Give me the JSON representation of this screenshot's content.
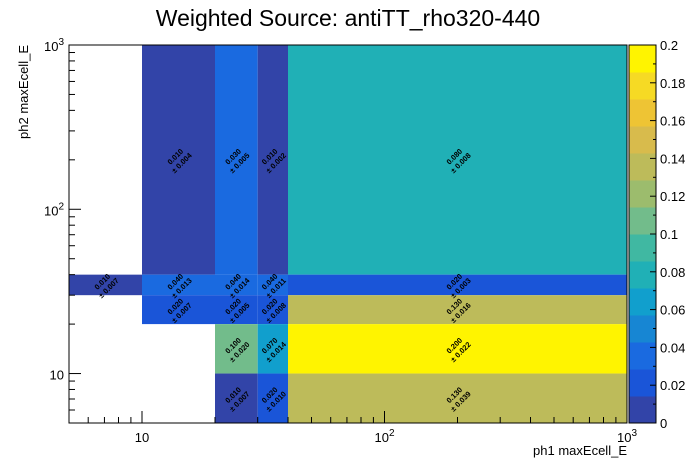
{
  "chart_data": {
    "type": "heatmap",
    "title": "Weighted Source: antiTT_rho320-440",
    "xlabel": "ph1 maxEcell_E",
    "ylabel": "ph2 maxEcell_E",
    "x_scale": "log",
    "y_scale": "log",
    "xlim": [
      5,
      1000
    ],
    "ylim": [
      5,
      1000
    ],
    "x_tick_labels": [
      {
        "value": 10,
        "base": "10",
        "exp": ""
      },
      {
        "value": 100,
        "base": "10",
        "exp": "2"
      },
      {
        "value": 1000,
        "base": "10",
        "exp": "3"
      }
    ],
    "y_tick_labels": [
      {
        "value": 10,
        "base": "10",
        "exp": ""
      },
      {
        "value": 100,
        "base": "10",
        "exp": "2"
      },
      {
        "value": 1000,
        "base": "10",
        "exp": "3"
      }
    ],
    "colorbar": {
      "min": 0,
      "max": 0.2,
      "tick_labels": [
        "0",
        "0.02",
        "0.04",
        "0.06",
        "0.08",
        "0.1",
        "0.12",
        "0.14",
        "0.16",
        "0.18",
        "0.2"
      ],
      "colors": [
        "#3244a8",
        "#1a55d8",
        "#1a6ae0",
        "#1786d3",
        "#119fcd",
        "#20b0b6",
        "#40b8a2",
        "#72bc8b",
        "#9cbc6d",
        "#bdbb5a",
        "#d8bb4c",
        "#eec434",
        "#f6da24",
        "#fff400"
      ]
    },
    "cells": [
      {
        "x0": 5,
        "x1": 10,
        "y0": 30,
        "y1": 40,
        "value": 0.01,
        "value_label": "0.010",
        "error_label": "± 0.007"
      },
      {
        "x0": 10,
        "x1": 20,
        "y0": 40,
        "y1": 1000,
        "value": 0.01,
        "value_label": "0.010",
        "error_label": "± 0.004"
      },
      {
        "x0": 10,
        "x1": 20,
        "y0": 30,
        "y1": 40,
        "value": 0.04,
        "value_label": "0.040",
        "error_label": "± 0.013"
      },
      {
        "x0": 10,
        "x1": 20,
        "y0": 20,
        "y1": 30,
        "value": 0.02,
        "value_label": "0.020",
        "error_label": "± 0.007"
      },
      {
        "x0": 20,
        "x1": 30,
        "y0": 40,
        "y1": 1000,
        "value": 0.03,
        "value_label": "0.030",
        "error_label": "± 0.005"
      },
      {
        "x0": 20,
        "x1": 30,
        "y0": 30,
        "y1": 40,
        "value": 0.04,
        "value_label": "0.040",
        "error_label": "± 0.014"
      },
      {
        "x0": 20,
        "x1": 30,
        "y0": 20,
        "y1": 30,
        "value": 0.02,
        "value_label": "0.020",
        "error_label": "± 0.005"
      },
      {
        "x0": 20,
        "x1": 30,
        "y0": 10,
        "y1": 20,
        "value": 0.1,
        "value_label": "0.100",
        "error_label": "± 0.020"
      },
      {
        "x0": 20,
        "x1": 30,
        "y0": 5,
        "y1": 10,
        "value": 0.01,
        "value_label": "0.010",
        "error_label": "± 0.007"
      },
      {
        "x0": 30,
        "x1": 40,
        "y0": 40,
        "y1": 1000,
        "value": 0.01,
        "value_label": "0.010",
        "error_label": "± 0.002"
      },
      {
        "x0": 30,
        "x1": 40,
        "y0": 30,
        "y1": 40,
        "value": 0.04,
        "value_label": "0.040",
        "error_label": "± 0.011"
      },
      {
        "x0": 30,
        "x1": 40,
        "y0": 20,
        "y1": 30,
        "value": 0.02,
        "value_label": "0.020",
        "error_label": "± 0.008"
      },
      {
        "x0": 30,
        "x1": 40,
        "y0": 10,
        "y1": 20,
        "value": 0.07,
        "value_label": "0.070",
        "error_label": "± 0.014"
      },
      {
        "x0": 30,
        "x1": 40,
        "y0": 5,
        "y1": 10,
        "value": 0.02,
        "value_label": "0.020",
        "error_label": "± 0.010"
      },
      {
        "x0": 40,
        "x1": 1000,
        "y0": 40,
        "y1": 1000,
        "value": 0.08,
        "value_label": "0.080",
        "error_label": "± 0.008"
      },
      {
        "x0": 40,
        "x1": 1000,
        "y0": 30,
        "y1": 40,
        "value": 0.02,
        "value_label": "0.020",
        "error_label": "± 0.003"
      },
      {
        "x0": 40,
        "x1": 1000,
        "y0": 20,
        "y1": 30,
        "value": 0.13,
        "value_label": "0.130",
        "error_label": "± 0.016"
      },
      {
        "x0": 40,
        "x1": 1000,
        "y0": 10,
        "y1": 20,
        "value": 0.2,
        "value_label": "0.200",
        "error_label": "± 0.022"
      },
      {
        "x0": 40,
        "x1": 1000,
        "y0": 5,
        "y1": 10,
        "value": 0.13,
        "value_label": "0.130",
        "error_label": "± 0.039"
      }
    ]
  }
}
